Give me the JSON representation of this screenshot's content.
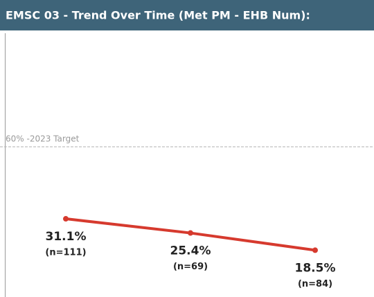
{
  "chart_data": {
    "type": "line",
    "title": "EMSC 03 - Trend Over Time (Met PM - EHB Num):",
    "categories": [
      null,
      null,
      null
    ],
    "values": [
      31.1,
      25.4,
      18.5
    ],
    "value_labels": [
      "31.1%",
      "25.4%",
      "18.5%"
    ],
    "sample_labels": [
      "(n=111)",
      "(n=69)",
      "(n=84)"
    ],
    "color": "#d63a2e",
    "ylim": [
      0,
      100
    ],
    "reference_line": {
      "value": 60,
      "label": "60% -2023 Target"
    }
  }
}
